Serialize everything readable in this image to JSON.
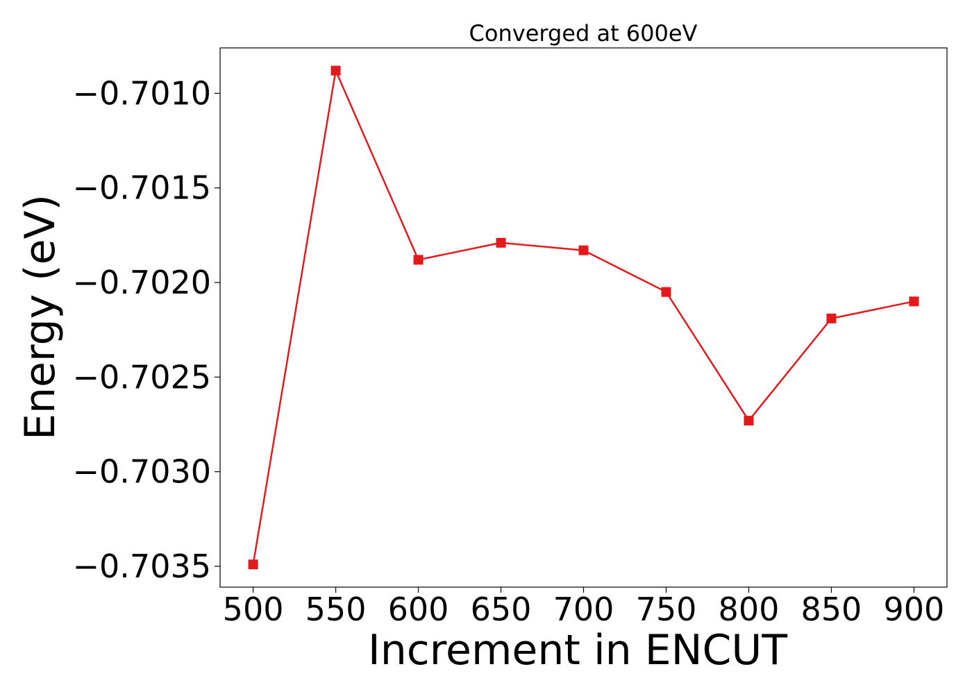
{
  "chart_data": {
    "type": "line",
    "title": "Converged at 600eV",
    "xlabel": "Increment in ENCUT",
    "ylabel": "Energy (eV)",
    "x": [
      500,
      550,
      600,
      650,
      700,
      750,
      800,
      850,
      900
    ],
    "series": [
      {
        "values": [
          -0.70349,
          -0.70088,
          -0.70188,
          -0.70179,
          -0.70183,
          -0.70205,
          -0.70273,
          -0.70219,
          -0.7021
        ],
        "color": "#e31a1c",
        "marker": "square"
      }
    ],
    "xticks": [
      500,
      550,
      600,
      650,
      700,
      750,
      800,
      850,
      900
    ],
    "xtick_labels": [
      "500",
      "550",
      "600",
      "650",
      "700",
      "750",
      "800",
      "850",
      "900"
    ],
    "yticks": [
      -0.7035,
      -0.703,
      -0.7025,
      -0.702,
      -0.7015,
      -0.701
    ],
    "ytick_labels": [
      "−0.7035",
      "−0.7030",
      "−0.7025",
      "−0.7020",
      "−0.7015",
      "−0.7010"
    ],
    "xlim": [
      480,
      920
    ],
    "ylim": [
      -0.70361,
      -0.70076
    ],
    "grid": false,
    "legend": "none"
  }
}
